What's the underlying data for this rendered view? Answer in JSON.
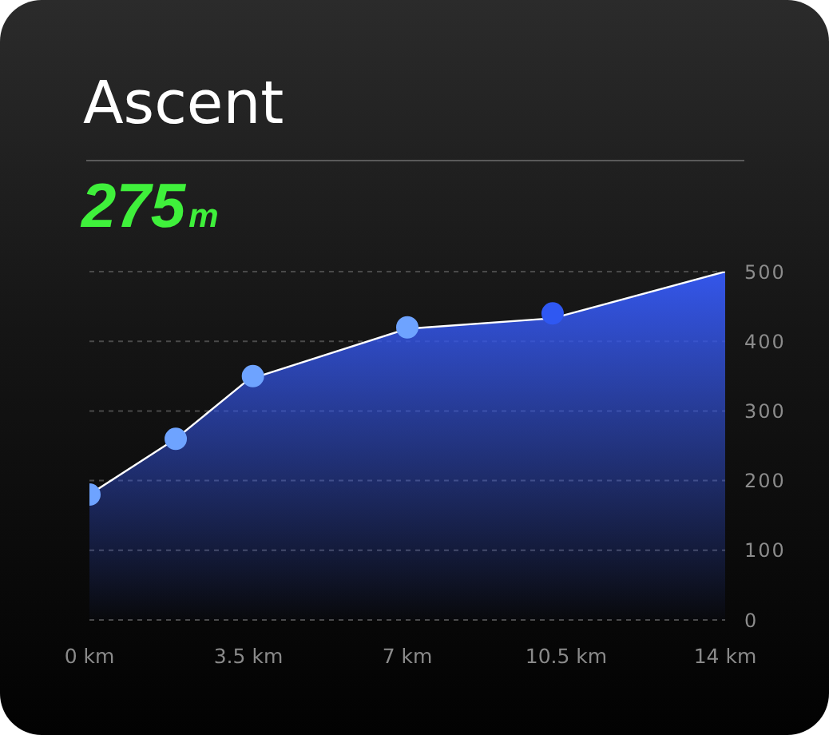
{
  "chart_data": {
    "type": "area",
    "title": "Ascent",
    "subtitle": "275m",
    "xlim": [
      0,
      14
    ],
    "xticks": [
      {
        "value": 0,
        "label": "0 km"
      },
      {
        "value": 3.5,
        "label": "3.5 km"
      },
      {
        "value": 7,
        "label": "7 km"
      },
      {
        "value": 10.5,
        "label": "10.5 km"
      },
      {
        "value": 14,
        "label": "14 km"
      }
    ],
    "ylim": [
      0,
      500
    ],
    "yticks": [
      0,
      100,
      200,
      300,
      400,
      500
    ],
    "grid": "y",
    "series": [
      {
        "color": "#3456ea",
        "x": [
          0,
          1.9,
          3.5,
          7,
          10.2,
          14
        ],
        "values": [
          180,
          260,
          345,
          418,
          433,
          500
        ]
      },
      {
        "type": "scatter",
        "marker": "circle",
        "colors": [
          "#6ea3ff",
          "#6ea3ff",
          "#6ea3ff",
          "#6ea3ff",
          "#2f58f2"
        ],
        "x": [
          0,
          1.9,
          3.6,
          7,
          10.2
        ],
        "values": [
          180,
          260,
          350,
          420,
          440
        ]
      }
    ]
  }
}
